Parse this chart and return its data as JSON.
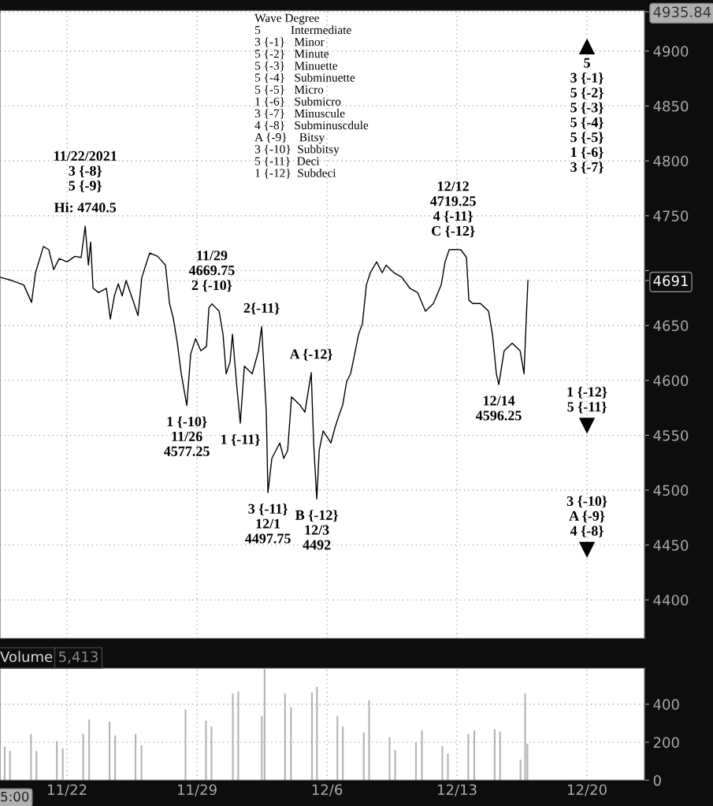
{
  "chart_data": [
    {
      "type": "line",
      "x": [
        "2021-11-18T09:22",
        "2021-11-19T00:43",
        "2021-11-19T16:05",
        "2021-11-20T02:10",
        "2021-11-20T07:12",
        "2021-11-20T17:31",
        "2021-11-21T00:29",
        "2021-11-21T06:43",
        "2021-11-21T13:55",
        "2021-11-22T00:00",
        "2021-11-22T10:05",
        "2021-11-22T18:14",
        "2021-11-22T23:31",
        "2021-11-23T03:36",
        "2021-11-23T06:29",
        "2021-11-23T09:36",
        "2021-11-23T16:48",
        "2021-11-24T02:53",
        "2021-11-24T07:55",
        "2021-11-24T13:12",
        "2021-11-24T18:14",
        "2021-11-24T23:17",
        "2021-11-25T04:19",
        "2021-11-25T14:38",
        "2021-11-25T19:41",
        "2021-11-26T00:43",
        "2021-11-26T10:48",
        "2021-11-26T21:07",
        "2021-11-27T07:12",
        "2021-11-27T12:29",
        "2021-11-27T17:31",
        "2021-11-27T22:34",
        "2021-11-28T03:36",
        "2021-11-28T10:48",
        "2021-11-28T15:50",
        "2021-11-28T22:05",
        "2021-11-29T05:02",
        "2021-11-29T12:14",
        "2021-11-29T15:22",
        "2021-11-29T19:12",
        "2021-11-30T04:34",
        "2021-11-30T09:36",
        "2021-11-30T13:41",
        "2021-11-30T18:43",
        "2021-11-30T21:50",
        "2021-12-01T02:53",
        "2021-12-01T07:55",
        "2021-12-01T13:12",
        "2021-12-01T23:17",
        "2021-12-02T07:26",
        "2021-12-02T11:31",
        "2021-12-02T17:31",
        "2021-12-02T19:41",
        "2021-12-03T00:43",
        "2021-12-03T11:02",
        "2021-12-03T16:05",
        "2021-12-03T21:07",
        "2021-12-04T02:10",
        "2021-12-04T12:29",
        "2021-12-04T19:26",
        "2021-12-05T03:36",
        "2021-12-05T06:43",
        "2021-12-05T10:48",
        "2021-12-05T13:55",
        "2021-12-05T18:58",
        "2021-12-06T05:02",
        "2021-12-06T10:19",
        "2021-12-06T15:22",
        "2021-12-06T20:24",
        "2021-12-07T01:26",
        "2021-12-07T06:29",
        "2021-12-07T11:46",
        "2021-12-07T16:48",
        "2021-12-07T21:50",
        "2021-12-08T02:53",
        "2021-12-08T07:55",
        "2021-12-08T16:05",
        "2021-12-08T23:17",
        "2021-12-09T04:19",
        "2021-12-09T14:38",
        "2021-12-10T00:43",
        "2021-12-10T11:02",
        "2021-12-10T21:07",
        "2021-12-11T07:12",
        "2021-12-11T17:31",
        "2021-12-12T03:36",
        "2021-12-12T08:38",
        "2021-12-12T13:55",
        "2021-12-12T18:58",
        "2021-12-13T05:02",
        "2021-12-13T12:14",
        "2021-12-13T15:22",
        "2021-12-13T20:24",
        "2021-12-14T06:29",
        "2021-12-14T16:48",
        "2021-12-14T21:50",
        "2021-12-15T02:53",
        "2021-12-15T06:00",
        "2021-12-15T12:58",
        "2021-12-15T23:17",
        "2021-12-16T09:36",
        "2021-12-16T14:38",
        "2021-12-16T17:31",
        "2021-12-16T19:41"
      ],
      "series": [
        {
          "color": "#000000",
          "values": [
            4694,
            4691,
            4687,
            4671,
            4698,
            4722,
            4719,
            4701,
            4711,
            4708,
            4713,
            4712,
            4740.5,
            4705,
            4726,
            4684,
            4680,
            4684,
            4656,
            4677,
            4688,
            4677,
            4691,
            4670,
            4659,
            4694,
            4716,
            4713,
            4705,
            4670,
            4656,
            4634,
            4606,
            4577.25,
            4624,
            4638,
            4627,
            4631,
            4666,
            4669.75,
            4663,
            4642,
            4606,
            4617,
            4642,
            4599,
            4561,
            4613,
            4606,
            4627,
            4649,
            4571,
            4497.75,
            4529,
            4543,
            4529,
            4536,
            4585,
            4578,
            4571,
            4607,
            4543,
            4492,
            4536,
            4554,
            4543,
            4557,
            4568,
            4578,
            4599,
            4606,
            4624,
            4642,
            4652,
            4687,
            4698,
            4708,
            4698,
            4705,
            4698,
            4694,
            4684,
            4680,
            4663,
            4670,
            4687,
            4708,
            4719,
            4719.25,
            4719,
            4712,
            4673,
            4670,
            4670,
            4663,
            4642,
            4606,
            4596.25,
            4627,
            4634,
            4627,
            4606,
            4656,
            4691
          ]
        }
      ],
      "xlim": [
        "2021-11-18T09:22",
        "2021-12-23T02:24"
      ],
      "xticks": [
        {
          "value": "2021-11-22",
          "label": null
        },
        {
          "value": "2021-11-29",
          "label": null
        },
        {
          "value": "2021-12-06",
          "label": null
        },
        {
          "value": "2021-12-13",
          "label": null
        },
        {
          "value": "2021-12-20",
          "label": null
        }
      ],
      "ylim": [
        4365,
        4937
      ],
      "yticks": [
        4400,
        4450,
        4500,
        4550,
        4600,
        4650,
        {
          "value": 4700,
          "label": null
        },
        4750,
        4800,
        4850,
        4900,
        4935.84,
        4691
      ],
      "grid": true,
      "tick_labels": "y",
      "annotations": [
        "Wave Degree\n5          Intermediate\n3 {-1}   Minor\n5 {-2}   Minute\n5 {-3}   Minuette\n5 {-4}   Subminuette\n5 {-5}   Micro\n1 {-6}   Submicro\n3 {-7}   Minuscule\n4 {-8}   Subminuscdule\nA {-9}    Bitsy\n3 {-10}  Subbitsy\n5 {-11}  Deci\n1 {-12}  Subdeci",
        {
          "text": "Hi: 4740.5",
          "x": "2021-11-22T23:31",
          "y": 4740.5
        },
        {
          "text": "11/22/2021\n3 {-8}\n5 {-9}",
          "x": "2021-11-22T23:31",
          "y": 4740.5
        },
        {
          "text": "1 {-10}\n11/26\n4577.25",
          "x": "2021-11-28T10:48",
          "y": 4577.25
        },
        {
          "text": "11/29\n4669.75\n2 {-10}",
          "x": "2021-11-29T19:12",
          "y": 4669.75
        },
        {
          "text": "2{-11}",
          "x": "2021-12-02T11:31",
          "y": 4649
        },
        {
          "text": "1 {-11}",
          "x": "2021-12-01T07:55",
          "y": 4561
        },
        {
          "text": "3 {-11}\n12/1\n4497.75",
          "x": "2021-12-02T19:41",
          "y": 4497.75
        },
        {
          "text": "A {-12}",
          "x": "2021-12-05T03:36",
          "y": 4607
        },
        {
          "text": "B {-12}\n12/3\n4492",
          "x": "2021-12-05T10:48",
          "y": 4492
        },
        {
          "text": "12/12\n4719.25\n4 {-11}\nC {-12}",
          "x": "2021-12-12T18:58",
          "y": 4719.25
        },
        {
          "text": "12/14\n4596.25",
          "x": "2021-12-15T06:00",
          "y": 4596.25
        },
        {
          "text": "5\n3 {-1}\n5 {-2}\n5 {-3}\n5 {-4}\n5 {-5}\n1 {-6}\n3 {-7}",
          "x": "2021-12-20",
          "y": 4904
        },
        {
          "text": "1 {-12}\n5 {-11}",
          "x": "2021-12-20",
          "y": 4559
        },
        {
          "text": "3 {-10}\nA {-9}\n4 {-8}",
          "x": "2021-12-20",
          "y": 4446
        }
      ]
    },
    {
      "type": "bar",
      "title": "Volume",
      "subtitle": "5,413",
      "x": [
        "2021-11-18T15:22",
        "2021-11-18T22:19",
        "2021-11-20T01:26",
        "2021-11-20T08:24",
        "2021-11-21T10:48",
        "2021-11-21T18:29",
        "2021-11-22T20:53",
        "2021-11-23T04:34",
        "2021-11-24T06:58",
        "2021-11-24T14:10",
        "2021-11-25T16:34",
        "2021-11-26T00:14",
        "2021-11-28T09:07",
        "2021-11-29T11:31",
        "2021-11-29T18:43",
        "2021-11-30T22:19",
        "2021-12-01T05:17",
        "2021-12-02T11:46",
        "2021-12-02T15:22",
        "2021-12-03T17:46",
        "2021-12-04T01:26",
        "2021-12-05T04:34",
        "2021-12-05T11:02",
        "2021-12-06T13:26",
        "2021-12-06T20:24",
        "2021-12-07T23:31",
        "2021-12-08T06:29",
        "2021-12-09T08:53",
        "2021-12-09T16:05",
        "2021-12-10T18:58",
        "2021-12-11T02:38",
        "2021-12-12T05:02",
        "2021-12-12T12:14",
        "2021-12-13T14:38",
        "2021-12-13T22:19",
        "2021-12-15T00:43",
        "2021-12-15T07:41",
        "2021-12-16T10:05",
        "2021-12-16T16:05",
        "2021-12-16T18:58"
      ],
      "series": [
        {
          "color": "#b4b4b4",
          "values": [
            175,
            154,
            244,
            154,
            205,
            167,
            244,
            320,
            308,
            236,
            244,
            185,
            372,
            313,
            282,
            456,
            467,
            338,
            585,
            456,
            385,
            462,
            492,
            338,
            282,
            251,
            421,
            226,
            159,
            200,
            264,
            179,
            141,
            244,
            262,
            269,
            256,
            108,
            456,
            192
          ]
        }
      ],
      "xlim": [
        "2021-11-18T09:22",
        "2021-12-23T02:24"
      ],
      "xticks": [
        {
          "value": "2021-11-22",
          "label": "11/22"
        },
        {
          "value": "2021-11-29",
          "label": "11/29"
        },
        {
          "value": "2021-12-06",
          "label": "12/6"
        },
        {
          "value": "2021-12-13",
          "label": "12/13"
        },
        {
          "value": "2021-12-20",
          "label": "12/20"
        }
      ],
      "ylim": [
        0,
        590
      ],
      "yticks": [
        0,
        200,
        400
      ],
      "grid": true,
      "annotations": [
        "5:00"
      ]
    }
  ]
}
